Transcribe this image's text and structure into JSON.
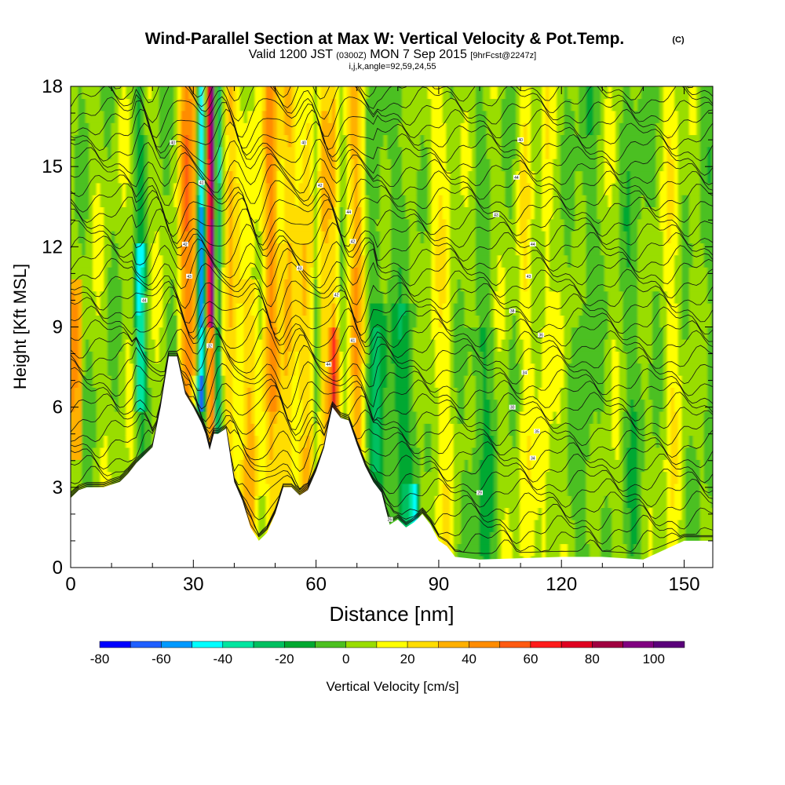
{
  "chart_data": {
    "type": "heatmap",
    "title": "Wind-Parallel Section at Max W: Vertical Velocity & Pot.Temp.",
    "title_tag": "(C)",
    "subtitle": {
      "prefix": "Valid 1200 JST",
      "zulu": "(0300Z)",
      "date": "MON 7 Sep 2015",
      "forecast": "[9hrFcst@2247z]"
    },
    "params_line": "i,j,k,angle=92,59,24,55",
    "xlabel": "Distance [nm]",
    "ylabel": "Height [Kft MSL]",
    "xlim": [
      0,
      157
    ],
    "ylim": [
      0,
      18
    ],
    "xticks": [
      0,
      30,
      60,
      90,
      120,
      150
    ],
    "yticks": [
      0,
      3,
      6,
      9,
      12,
      15,
      18
    ],
    "colorbar": {
      "label": "Vertical Velocity [cm/s]",
      "range": [
        -80,
        110
      ],
      "tick_labels": [
        "-80",
        "-60",
        "-40",
        "-20",
        "0",
        "20",
        "40",
        "60",
        "80",
        "100"
      ],
      "tick_values": [
        -80,
        -60,
        -40,
        -20,
        0,
        20,
        40,
        60,
        80,
        100
      ],
      "colors": [
        "#0000ff",
        "#1f5fff",
        "#0099ff",
        "#00ffff",
        "#00e6a0",
        "#00c060",
        "#00a830",
        "#4cc020",
        "#99dd00",
        "#ffff00",
        "#ffdd00",
        "#ffb000",
        "#ff8c00",
        "#ff5a10",
        "#ff1a1a",
        "#e00020",
        "#a00040",
        "#800080",
        "#5a007a"
      ]
    },
    "terrain_profile": {
      "x": [
        0,
        2,
        4,
        8,
        12,
        14,
        16,
        18,
        20,
        22,
        24,
        26,
        28,
        30,
        32,
        33,
        34,
        35,
        36,
        38,
        40,
        42,
        44,
        46,
        48,
        50,
        52,
        54,
        56,
        58,
        60,
        62,
        63,
        64,
        66,
        68,
        70,
        72,
        74,
        76,
        78,
        80,
        82,
        84,
        86,
        88,
        90,
        92,
        94,
        100,
        110,
        120,
        130,
        140,
        150,
        157
      ],
      "y": [
        2.6,
        2.9,
        3.0,
        3.0,
        3.2,
        3.5,
        3.9,
        4.2,
        4.5,
        6.0,
        7.9,
        7.9,
        6.5,
        6.0,
        5.4,
        5.0,
        4.4,
        5.0,
        5.0,
        5.2,
        3.2,
        2.5,
        1.5,
        1.0,
        1.3,
        2.0,
        3.0,
        3.0,
        2.7,
        2.9,
        3.6,
        4.5,
        5.3,
        6.0,
        5.6,
        5.5,
        4.6,
        3.8,
        3.2,
        2.8,
        1.6,
        1.8,
        1.5,
        1.7,
        2.0,
        1.6,
        1.0,
        0.8,
        0.4,
        0.3,
        0.35,
        0.4,
        0.4,
        0.3,
        1.0,
        1.0
      ]
    },
    "theta_labels": [
      {
        "x": 25,
        "y": 15.9,
        "text": "40"
      },
      {
        "x": 32,
        "y": 14.4,
        "text": "41"
      },
      {
        "x": 28,
        "y": 12.1,
        "text": "42"
      },
      {
        "x": 29,
        "y": 10.9,
        "text": "43"
      },
      {
        "x": 18,
        "y": 10.0,
        "text": "44"
      },
      {
        "x": 34,
        "y": 8.3,
        "text": "32"
      },
      {
        "x": 57,
        "y": 15.9,
        "text": "40"
      },
      {
        "x": 61,
        "y": 14.3,
        "text": "42"
      },
      {
        "x": 68,
        "y": 13.3,
        "text": "44"
      },
      {
        "x": 69,
        "y": 12.2,
        "text": "42"
      },
      {
        "x": 56,
        "y": 11.2,
        "text": "43"
      },
      {
        "x": 65,
        "y": 10.2,
        "text": "42"
      },
      {
        "x": 69,
        "y": 8.5,
        "text": "41"
      },
      {
        "x": 63,
        "y": 7.6,
        "text": "44"
      },
      {
        "x": 110,
        "y": 16.0,
        "text": "40"
      },
      {
        "x": 109,
        "y": 14.6,
        "text": "44"
      },
      {
        "x": 104,
        "y": 13.2,
        "text": "43"
      },
      {
        "x": 113,
        "y": 12.1,
        "text": "44"
      },
      {
        "x": 112,
        "y": 10.9,
        "text": "43"
      },
      {
        "x": 108,
        "y": 9.6,
        "text": "38"
      },
      {
        "x": 115,
        "y": 8.7,
        "text": "36"
      },
      {
        "x": 111,
        "y": 7.3,
        "text": "34"
      },
      {
        "x": 108,
        "y": 6.0,
        "text": "30"
      },
      {
        "x": 114,
        "y": 5.1,
        "text": "35"
      },
      {
        "x": 113,
        "y": 4.1,
        "text": "34"
      },
      {
        "x": 100,
        "y": 2.8,
        "text": "29"
      },
      {
        "x": 78,
        "y": 1.8,
        "text": "26"
      }
    ]
  }
}
